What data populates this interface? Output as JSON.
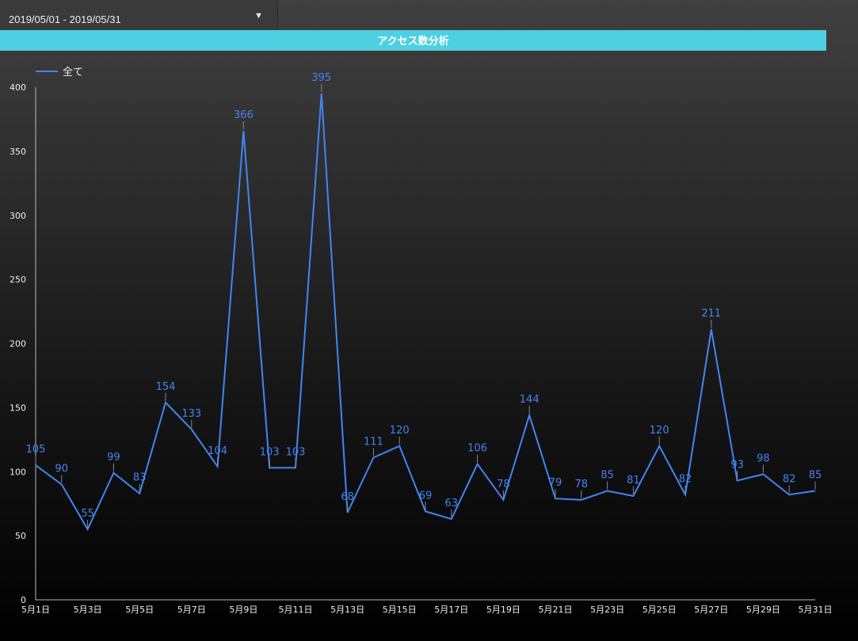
{
  "date_range": "2019/05/01 - 2019/05/31",
  "chart_data": {
    "type": "line",
    "title": "アクセス数分析",
    "categories": [
      "5月1日",
      null,
      "5月3日",
      null,
      "5月5日",
      null,
      "5月7日",
      null,
      "5月9日",
      null,
      "5月11日",
      null,
      "5月13日",
      null,
      "5月15日",
      null,
      "5月17日",
      null,
      "5月19日",
      null,
      "5月21日",
      null,
      "5月23日",
      null,
      "5月25日",
      null,
      "5月27日",
      null,
      "5月29日",
      null,
      "5月31日"
    ],
    "series": [
      {
        "name": "全て",
        "color": "#4285f4",
        "values": [
          105,
          90,
          55,
          99,
          83,
          154,
          133,
          104,
          366,
          103,
          103,
          395,
          68,
          111,
          120,
          69,
          63,
          106,
          78,
          144,
          79,
          78,
          85,
          81,
          120,
          82,
          211,
          93,
          98,
          82,
          85
        ]
      }
    ],
    "ylim": [
      0,
      400
    ],
    "yticks": [
      0,
      50,
      100,
      150,
      200,
      250,
      300,
      350,
      400
    ],
    "grid": false,
    "legend": "top-left",
    "data_labels": true
  }
}
